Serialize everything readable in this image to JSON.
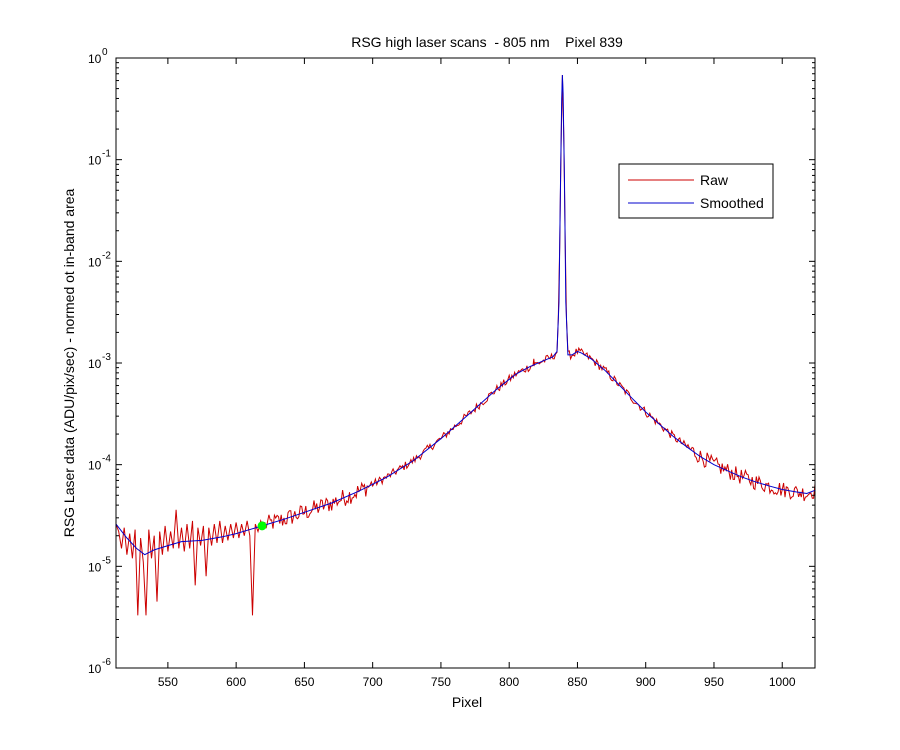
{
  "chart_data": {
    "type": "line",
    "title": "RSG high laser scans  - 805 nm    Pixel 839",
    "xlabel": "Pixel",
    "ylabel": "RSG Laser data (ADU/pix/sec) - normed ot in-band area",
    "x_scale": "linear",
    "y_scale": "log",
    "xlim": [
      512,
      1024
    ],
    "ylim": [
      1e-06,
      1
    ],
    "x_ticks": [
      550,
      600,
      650,
      700,
      750,
      800,
      850,
      900,
      950,
      1000
    ],
    "x_tick_labels": [
      "550",
      "600",
      "650",
      "700",
      "750",
      "800",
      "850",
      "900",
      "950",
      "1000"
    ],
    "y_ticks": [
      {
        "value": 1e-06,
        "base": "10",
        "exp": "-6"
      },
      {
        "value": 1e-05,
        "base": "10",
        "exp": "-5"
      },
      {
        "value": 0.0001,
        "base": "10",
        "exp": "-4"
      },
      {
        "value": 0.001,
        "base": "10",
        "exp": "-3"
      },
      {
        "value": 0.01,
        "base": "10",
        "exp": "-2"
      },
      {
        "value": 0.1,
        "base": "10",
        "exp": "-1"
      },
      {
        "value": 1,
        "base": "10",
        "exp": "0"
      }
    ],
    "grid": false,
    "legend": {
      "position": "top-right",
      "entries": [
        "Raw",
        "Smoothed"
      ]
    },
    "series": [
      {
        "name": "Raw",
        "color": "#cc0000",
        "noise_points": [
          {
            "x": 512,
            "y": 2.6e-05
          },
          {
            "x": 514,
            "y": 2.2e-05
          },
          {
            "x": 516,
            "y": 1.5e-05
          },
          {
            "x": 518,
            "y": 2.4e-05
          },
          {
            "x": 520,
            "y": 1.3e-05
          },
          {
            "x": 522,
            "y": 2.1e-05
          },
          {
            "x": 524,
            "y": 1.2e-05
          },
          {
            "x": 526,
            "y": 2.3e-05
          },
          {
            "x": 528,
            "y": 3.3e-06
          },
          {
            "x": 530,
            "y": 1.9e-05
          },
          {
            "x": 532,
            "y": 1.1e-05
          },
          {
            "x": 534,
            "y": 3.3e-06
          },
          {
            "x": 536,
            "y": 2.3e-05
          },
          {
            "x": 538,
            "y": 1.2e-05
          },
          {
            "x": 540,
            "y": 2e-05
          },
          {
            "x": 542,
            "y": 4.5e-06
          },
          {
            "x": 544,
            "y": 2.2e-05
          },
          {
            "x": 546,
            "y": 1.3e-05
          },
          {
            "x": 548,
            "y": 2.5e-05
          },
          {
            "x": 550,
            "y": 1.4e-05
          },
          {
            "x": 552,
            "y": 2.2e-05
          },
          {
            "x": 554,
            "y": 1.5e-05
          },
          {
            "x": 556,
            "y": 3.6e-05
          },
          {
            "x": 558,
            "y": 1.5e-05
          },
          {
            "x": 560,
            "y": 2.4e-05
          },
          {
            "x": 562,
            "y": 1.4e-05
          },
          {
            "x": 564,
            "y": 2.6e-05
          },
          {
            "x": 566,
            "y": 1.5e-05
          },
          {
            "x": 568,
            "y": 2.8e-05
          },
          {
            "x": 570,
            "y": 6.5e-06
          },
          {
            "x": 572,
            "y": 2.4e-05
          },
          {
            "x": 574,
            "y": 1.6e-05
          },
          {
            "x": 576,
            "y": 2.5e-05
          },
          {
            "x": 578,
            "y": 8e-06
          },
          {
            "x": 580,
            "y": 2.4e-05
          },
          {
            "x": 582,
            "y": 1.6e-05
          },
          {
            "x": 584,
            "y": 2.6e-05
          },
          {
            "x": 586,
            "y": 1.7e-05
          },
          {
            "x": 588,
            "y": 2.8e-05
          },
          {
            "x": 590,
            "y": 1.7e-05
          },
          {
            "x": 592,
            "y": 2.5e-05
          },
          {
            "x": 594,
            "y": 1.8e-05
          },
          {
            "x": 596,
            "y": 2.6e-05
          },
          {
            "x": 598,
            "y": 1.9e-05
          },
          {
            "x": 600,
            "y": 2.7e-05
          },
          {
            "x": 602,
            "y": 1.9e-05
          },
          {
            "x": 604,
            "y": 2.6e-05
          },
          {
            "x": 606,
            "y": 2e-05
          },
          {
            "x": 608,
            "y": 2.8e-05
          },
          {
            "x": 610,
            "y": 2e-05
          },
          {
            "x": 612,
            "y": 3.3e-06
          },
          {
            "x": 614,
            "y": 2.6e-05
          },
          {
            "x": 616,
            "y": 2.2e-05
          },
          {
            "x": 618,
            "y": 2.8e-05
          },
          {
            "x": 620,
            "y": 2.3e-05
          }
        ],
        "noise_amplitude_dex": 0.07
      },
      {
        "name": "Smoothed",
        "color": "#0000cc",
        "points": [
          {
            "x": 512,
            "y": 2.6e-05
          },
          {
            "x": 520,
            "y": 1.9e-05
          },
          {
            "x": 527,
            "y": 1.5e-05
          },
          {
            "x": 533,
            "y": 1.3e-05
          },
          {
            "x": 540,
            "y": 1.45e-05
          },
          {
            "x": 550,
            "y": 1.6e-05
          },
          {
            "x": 560,
            "y": 1.75e-05
          },
          {
            "x": 575,
            "y": 1.8e-05
          },
          {
            "x": 590,
            "y": 1.95e-05
          },
          {
            "x": 600,
            "y": 2.1e-05
          },
          {
            "x": 619,
            "y": 2.5e-05
          },
          {
            "x": 635,
            "y": 2.9e-05
          },
          {
            "x": 650,
            "y": 3.4e-05
          },
          {
            "x": 670,
            "y": 4.2e-05
          },
          {
            "x": 690,
            "y": 5.5e-05
          },
          {
            "x": 710,
            "y": 7.5e-05
          },
          {
            "x": 730,
            "y": 0.00011
          },
          {
            "x": 750,
            "y": 0.00018
          },
          {
            "x": 770,
            "y": 0.00031
          },
          {
            "x": 790,
            "y": 0.00054
          },
          {
            "x": 805,
            "y": 0.00078
          },
          {
            "x": 815,
            "y": 0.00092
          },
          {
            "x": 825,
            "y": 0.00105
          },
          {
            "x": 832,
            "y": 0.00115
          },
          {
            "x": 835,
            "y": 0.0013
          },
          {
            "x": 836.5,
            "y": 0.004
          },
          {
            "x": 837.5,
            "y": 0.05
          },
          {
            "x": 838.5,
            "y": 0.4
          },
          {
            "x": 839,
            "y": 0.68
          },
          {
            "x": 839.5,
            "y": 0.45
          },
          {
            "x": 840.5,
            "y": 0.06
          },
          {
            "x": 841.5,
            "y": 0.004
          },
          {
            "x": 843,
            "y": 0.0012
          },
          {
            "x": 846,
            "y": 0.0012
          },
          {
            "x": 850,
            "y": 0.0013
          },
          {
            "x": 853,
            "y": 0.00125
          },
          {
            "x": 860,
            "y": 0.0011
          },
          {
            "x": 870,
            "y": 0.00085
          },
          {
            "x": 880,
            "y": 0.00062
          },
          {
            "x": 890,
            "y": 0.00045
          },
          {
            "x": 900,
            "y": 0.00033
          },
          {
            "x": 910,
            "y": 0.00025
          },
          {
            "x": 920,
            "y": 0.00019
          },
          {
            "x": 930,
            "y": 0.00015
          },
          {
            "x": 940,
            "y": 0.00012
          },
          {
            "x": 950,
            "y": 0.0001
          },
          {
            "x": 960,
            "y": 8.7e-05
          },
          {
            "x": 970,
            "y": 7.6e-05
          },
          {
            "x": 980,
            "y": 6.8e-05
          },
          {
            "x": 990,
            "y": 6.2e-05
          },
          {
            "x": 1000,
            "y": 5.7e-05
          },
          {
            "x": 1010,
            "y": 5.4e-05
          },
          {
            "x": 1018,
            "y": 5.2e-05
          },
          {
            "x": 1024,
            "y": 5.6e-05
          }
        ]
      }
    ],
    "annotations": [
      {
        "type": "marker",
        "x": 619,
        "y": 2.5e-05,
        "color": "#00ff00",
        "shape": "circle"
      },
      {
        "type": "spike",
        "x": 818,
        "y": 0.0011
      }
    ]
  }
}
